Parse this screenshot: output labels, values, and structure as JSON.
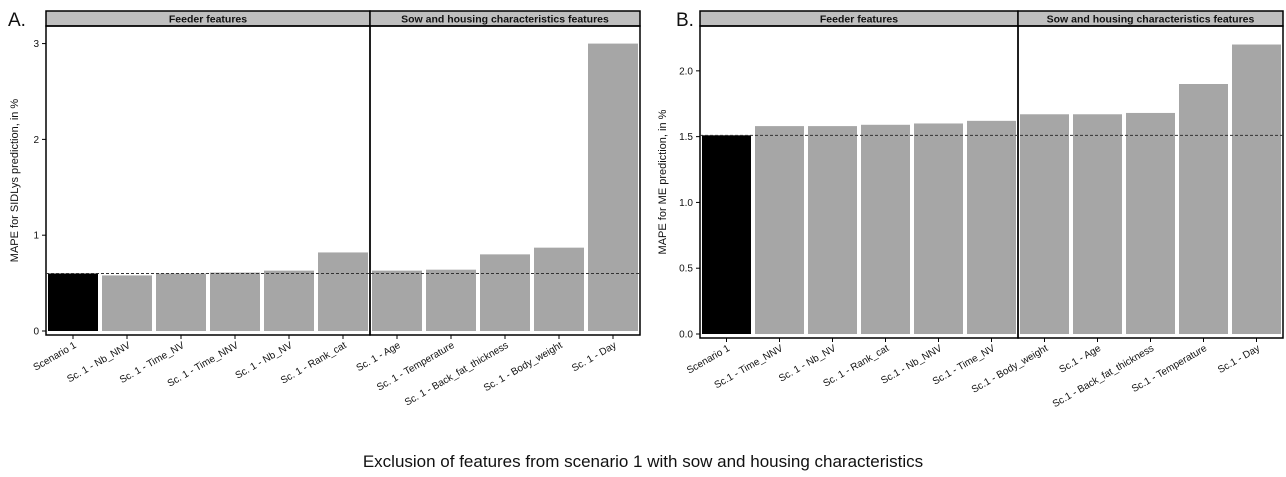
{
  "figure": {
    "xlabel": "Exclusion of features from scenario 1 with sow and housing characteristics"
  },
  "chart_data": [
    {
      "type": "bar",
      "panel_label": "A.",
      "ylabel": "MAPE for SIDLys prediction, in %",
      "ylim": [
        0,
        3.1
      ],
      "yticks": [
        "0",
        "1",
        "2",
        "3"
      ],
      "ytick_values": [
        0,
        1,
        2,
        3
      ],
      "reference_line": 0.6,
      "facets": [
        {
          "label": "Feeder features",
          "count": 6
        },
        {
          "label": "Sow and housing characteristics features",
          "count": 5
        }
      ],
      "categories": [
        "Scenario 1",
        "Sc. 1 - Nb_NNV",
        "Sc. 1 - Time_NV",
        "Sc. 1 - Time_NNV",
        "Sc. 1 - Nb_NV",
        "Sc. 1 - Rank_cat",
        "Sc. 1 - Age",
        "Sc. 1 - Temperature",
        "Sc. 1 - Back_fat_thickness",
        "Sc. 1 - Body_weight",
        "Sc. 1 - Day"
      ],
      "values": [
        0.6,
        0.58,
        0.6,
        0.61,
        0.63,
        0.82,
        0.63,
        0.64,
        0.8,
        0.87,
        3.0
      ],
      "colors": [
        "#000000",
        "#a6a6a6",
        "#a6a6a6",
        "#a6a6a6",
        "#a6a6a6",
        "#a6a6a6",
        "#a6a6a6",
        "#a6a6a6",
        "#a6a6a6",
        "#a6a6a6",
        "#a6a6a6"
      ]
    },
    {
      "type": "bar",
      "panel_label": "B.",
      "ylabel": "MAPE for ME prediction, in %",
      "ylim": [
        0,
        2.28
      ],
      "yticks": [
        "0.0",
        "0.5",
        "1.0",
        "1.5",
        "2.0"
      ],
      "ytick_values": [
        0,
        0.5,
        1.0,
        1.5,
        2.0
      ],
      "reference_line": 1.51,
      "facets": [
        {
          "label": "Feeder features",
          "count": 6
        },
        {
          "label": "Sow and housing characteristics features",
          "count": 5
        }
      ],
      "categories": [
        "Scenario 1",
        "Sc.1 - Time_NNV",
        "Sc. 1 - Nb_NV",
        "Sc. 1 - Rank_cat",
        "Sc.1 - Nb_NNV",
        "Sc.1 - Time_NV",
        "Sc.1 - Body_weight",
        "Sc.1 - Age",
        "Sc.1 - Back_fat_thickness",
        "Sc.1 - Temperature",
        "Sc.1 - Day"
      ],
      "values": [
        1.51,
        1.58,
        1.58,
        1.59,
        1.6,
        1.62,
        1.67,
        1.67,
        1.68,
        1.9,
        2.2
      ],
      "colors": [
        "#000000",
        "#a6a6a6",
        "#a6a6a6",
        "#a6a6a6",
        "#a6a6a6",
        "#a6a6a6",
        "#a6a6a6",
        "#a6a6a6",
        "#a6a6a6",
        "#a6a6a6",
        "#a6a6a6"
      ]
    }
  ],
  "style": {
    "strip_fill": "#bfbfbf",
    "frame_color": "#000000",
    "ref_line_color": "#333333"
  }
}
